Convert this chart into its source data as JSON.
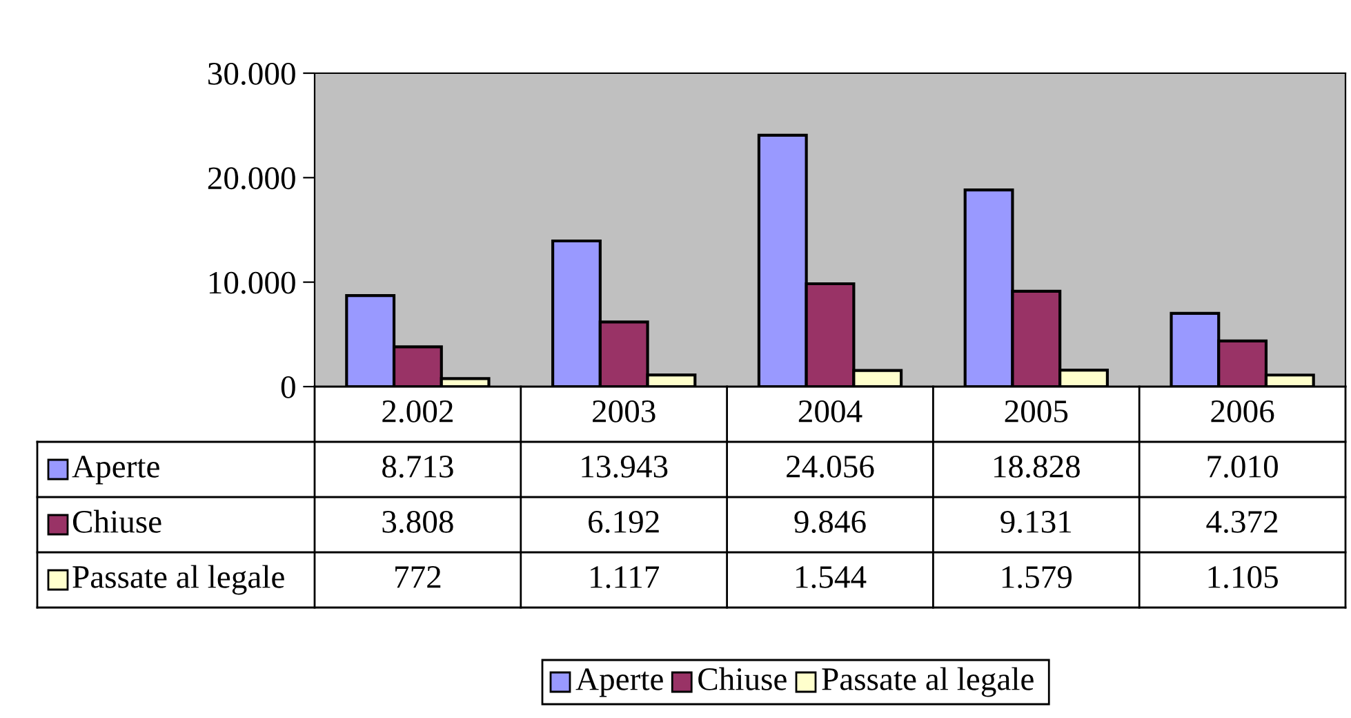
{
  "chart_data": {
    "type": "bar",
    "categories": [
      "2.002",
      "2003",
      "2004",
      "2005",
      "2006"
    ],
    "series": [
      {
        "name": "Aperte",
        "color": "#9999ff",
        "values": [
          8713,
          13943,
          24056,
          18828,
          7010
        ],
        "value_labels": [
          "8.713",
          "13.943",
          "24.056",
          "18.828",
          "7.010"
        ]
      },
      {
        "name": "Chiuse",
        "color": "#993366",
        "values": [
          3808,
          6192,
          9846,
          9131,
          4372
        ],
        "value_labels": [
          "3.808",
          "6.192",
          "9.846",
          "9.131",
          "4.372"
        ]
      },
      {
        "name": "Passate al legale",
        "color": "#ffffcc",
        "values": [
          772,
          1117,
          1544,
          1579,
          1105
        ],
        "value_labels": [
          "772",
          "1.117",
          "1.544",
          "1.579",
          "1.105"
        ]
      }
    ],
    "ylim": [
      0,
      30000
    ],
    "yticks": [
      {
        "value": 0,
        "label": "0"
      },
      {
        "value": 10000,
        "label": "10.000"
      },
      {
        "value": 20000,
        "label": "20.000"
      },
      {
        "value": 30000,
        "label": "30.000"
      }
    ],
    "grid": false,
    "legend": "bottom"
  }
}
